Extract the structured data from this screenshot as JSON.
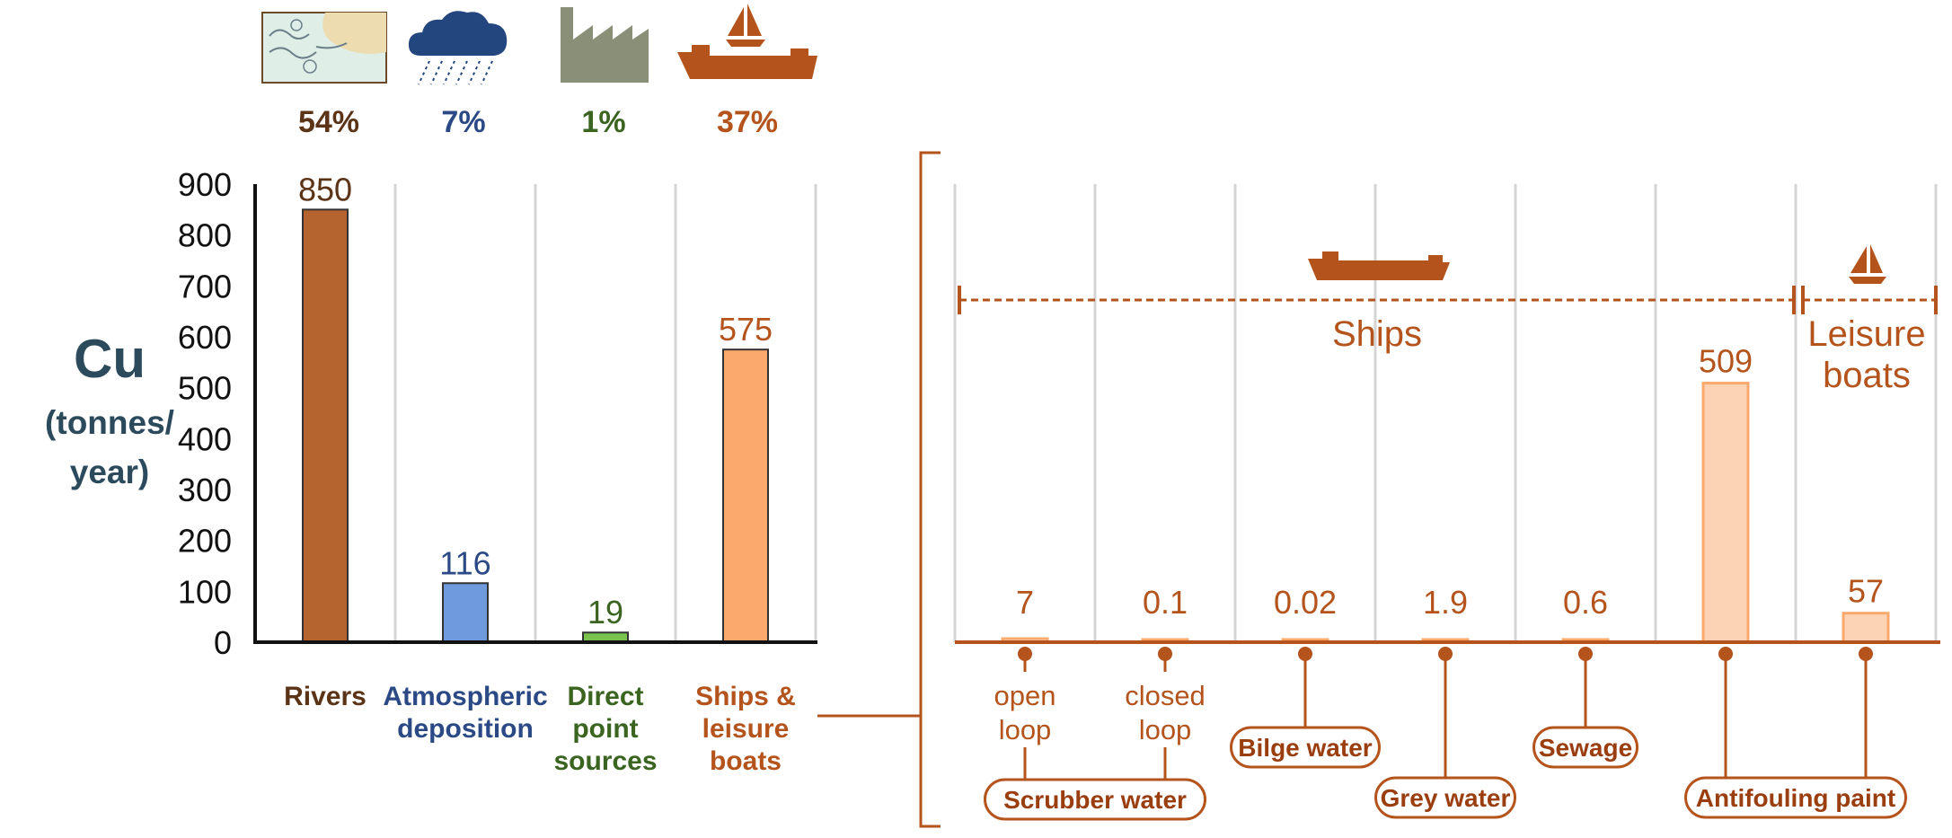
{
  "colors": {
    "rivers": "#b5642f",
    "atmospheric": "#6f9bdc",
    "direct": "#79c34e",
    "ships": "#fca96d",
    "ships_light": "#fdd3b5",
    "accent": "#b4541c",
    "rivers_text": "#5b3316",
    "atmospheric_text": "#2b4a85",
    "direct_text": "#3a6420",
    "ylabel_text": "#2b4a5c",
    "grid": "#d4d4d4"
  },
  "icons": {
    "rivers": "river-map-icon",
    "atmospheric": "rain-cloud-icon",
    "direct": "factory-icon",
    "ships": "ship-and-sailboat-icon"
  },
  "shares": [
    {
      "label": "54%",
      "color_key": "rivers_text"
    },
    {
      "label": "7%",
      "color_key": "atmospheric_text"
    },
    {
      "label": "1%",
      "color_key": "direct_text"
    },
    {
      "label": "37%",
      "color_key": "accent"
    }
  ],
  "chart_data": [
    {
      "type": "bar",
      "ylabel_lines": [
        "Cu",
        "(tonnes/",
        "year)"
      ],
      "ylim": [
        0,
        900
      ],
      "yticks": [
        0,
        100,
        200,
        300,
        400,
        500,
        600,
        700,
        800,
        900
      ],
      "grid": true,
      "categories": [
        {
          "lines": [
            "Rivers"
          ],
          "value": 850,
          "value_label": "850",
          "color_key": "rivers",
          "text_color_key": "rivers_text"
        },
        {
          "lines": [
            "Atmospheric",
            "deposition"
          ],
          "value": 116,
          "value_label": "116",
          "color_key": "atmospheric",
          "text_color_key": "atmospheric_text"
        },
        {
          "lines": [
            "Direct",
            "point",
            "sources"
          ],
          "value": 19,
          "value_label": "19",
          "color_key": "direct",
          "text_color_key": "direct_text"
        },
        {
          "lines": [
            "Ships &",
            "leisure",
            "boats"
          ],
          "value": 575,
          "value_label": "575",
          "color_key": "ships",
          "text_color_key": "accent"
        }
      ]
    },
    {
      "type": "bar",
      "ylim": [
        0,
        900
      ],
      "grid": true,
      "ranges": [
        {
          "label_lines": [
            "Ships"
          ],
          "icon": "cargo-ship-icon"
        },
        {
          "label_lines": [
            "Leisure",
            "boats"
          ],
          "icon": "sailboat-icon"
        }
      ],
      "categories": [
        {
          "value": 7,
          "value_label": "7",
          "sub_lines": [
            "open",
            "loop"
          ]
        },
        {
          "value": 0.1,
          "value_label": "0.1",
          "sub_lines": [
            "closed",
            "loop"
          ]
        },
        {
          "value": 0.02,
          "value_label": "0.02",
          "source": "Bilge water"
        },
        {
          "value": 1.9,
          "value_label": "1.9",
          "source": "Grey water"
        },
        {
          "value": 0.6,
          "value_label": "0.6",
          "source": "Sewage"
        },
        {
          "value": 509,
          "value_label": "509"
        },
        {
          "value": 57,
          "value_label": "57"
        }
      ],
      "group_labels": [
        {
          "label": "Scrubber water"
        },
        {
          "label": "Antifouling paint"
        }
      ]
    }
  ]
}
